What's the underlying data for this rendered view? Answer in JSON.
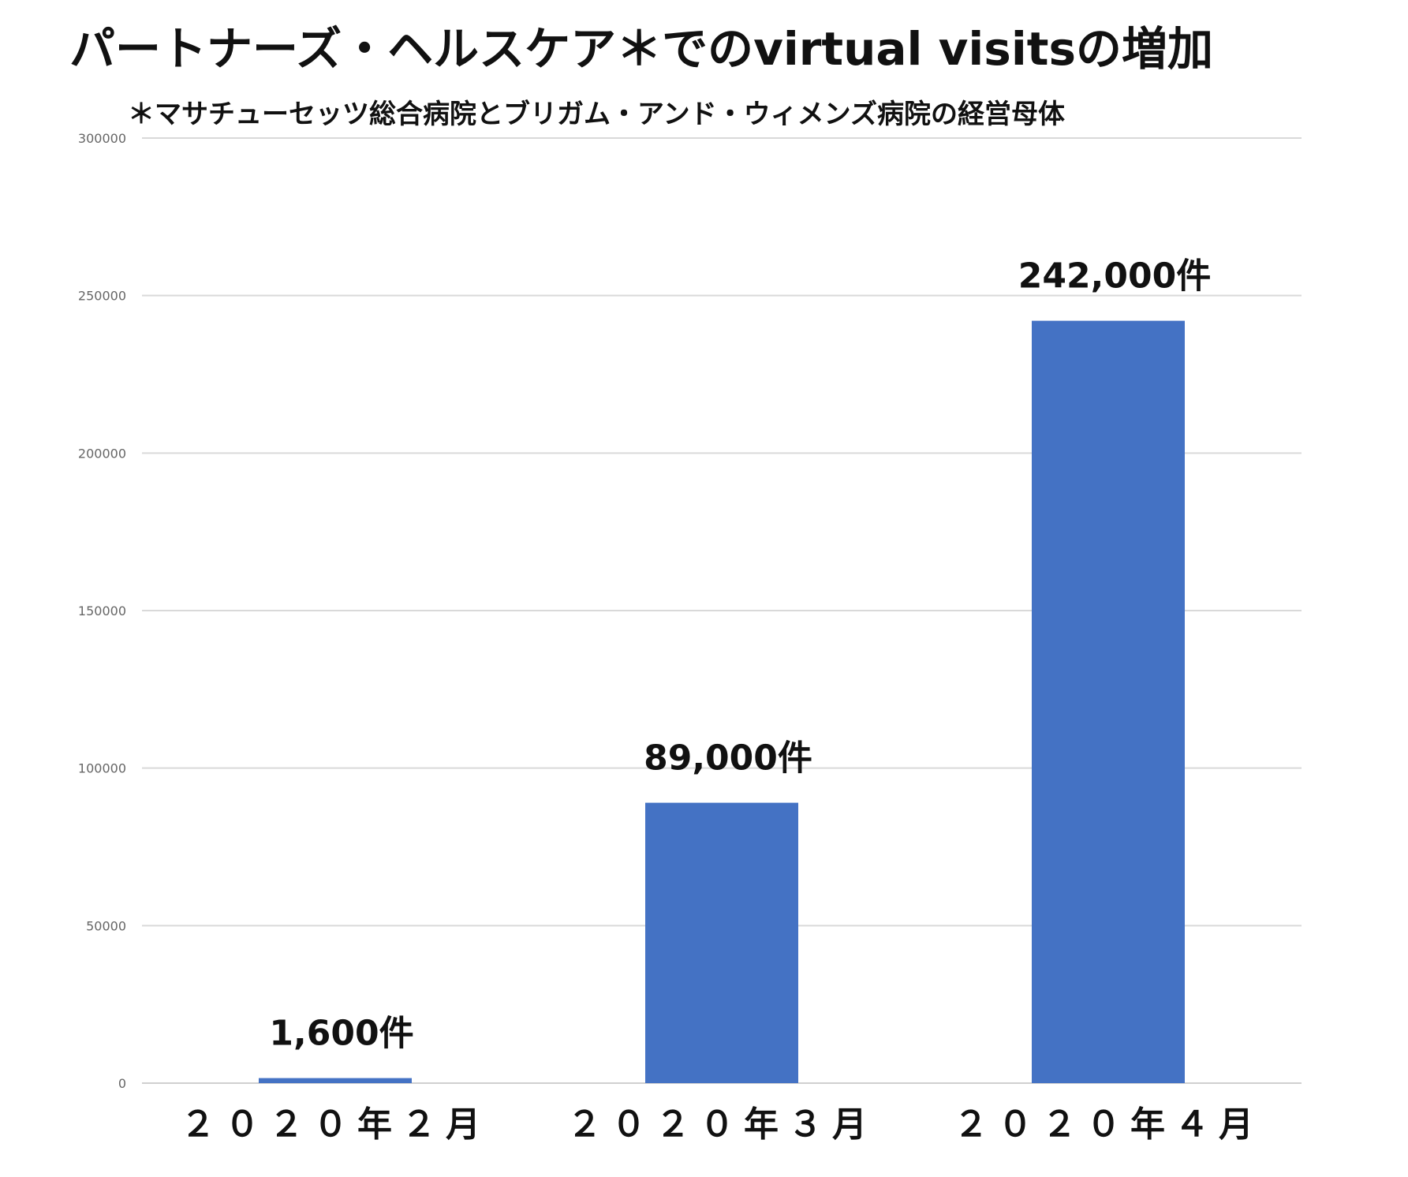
{
  "chart_data": {
    "type": "bar",
    "title": "パートナーズ・ヘルスケア＊でのvirtual visitsの増加",
    "subtitle": "＊マサチューセッツ総合病院とブリガム・アンド・ウィメンズ病院の経営母体",
    "categories": [
      "２０２０年２月",
      "２０２０年３月",
      "２０２０年４月"
    ],
    "values": [
      1600,
      89000,
      242000
    ],
    "data_labels": [
      "1,600件",
      "89,000件",
      "242,000件"
    ],
    "xlabel": "",
    "ylabel": "",
    "ylim": [
      0,
      300000
    ],
    "y_ticks": [
      0,
      50000,
      100000,
      150000,
      200000,
      250000,
      300000
    ],
    "y_tick_labels": [
      "0",
      "50000",
      "100000",
      "150000",
      "200000",
      "250000",
      "300000"
    ],
    "grid": true,
    "legend": "none",
    "bar_color": "#4472c4"
  }
}
